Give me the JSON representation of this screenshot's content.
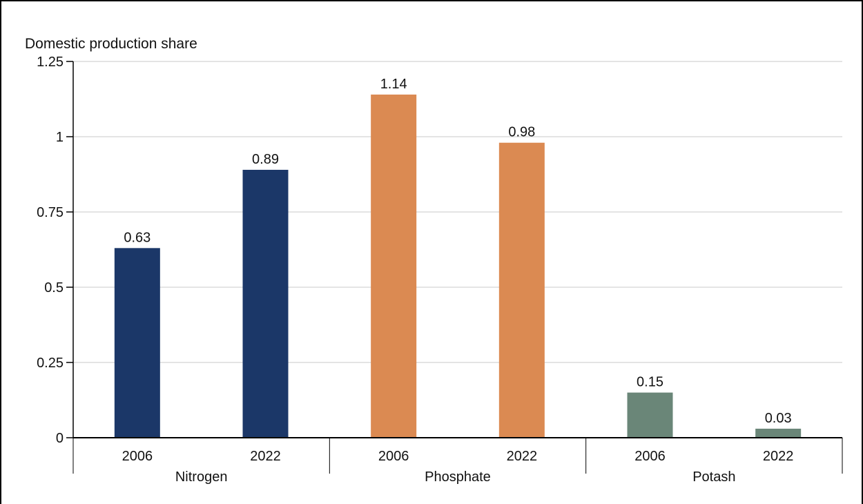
{
  "chart_data": {
    "type": "bar",
    "ylabel": "Domestic production share",
    "ylim": [
      0,
      1.25
    ],
    "yticks": [
      {
        "value": 0,
        "label": "0"
      },
      {
        "value": 0.25,
        "label": "0.25"
      },
      {
        "value": 0.5,
        "label": "0.5"
      },
      {
        "value": 0.75,
        "label": "0.75"
      },
      {
        "value": 1,
        "label": "1"
      },
      {
        "value": 1.25,
        "label": "1.25"
      }
    ],
    "grid": true,
    "groups": [
      {
        "name": "Nitrogen",
        "color": "#1b3768",
        "bars": [
          {
            "category": "2006",
            "value": 0.63,
            "label": "0.63"
          },
          {
            "category": "2022",
            "value": 0.89,
            "label": "0.89"
          }
        ]
      },
      {
        "name": "Phosphate",
        "color": "#db8a52",
        "bars": [
          {
            "category": "2006",
            "value": 1.14,
            "label": "1.14"
          },
          {
            "category": "2022",
            "value": 0.98,
            "label": "0.98"
          }
        ]
      },
      {
        "name": "Potash",
        "color": "#6a8678",
        "bars": [
          {
            "category": "2006",
            "value": 0.15,
            "label": "0.15"
          },
          {
            "category": "2022",
            "value": 0.03,
            "label": "0.03"
          }
        ]
      }
    ]
  }
}
